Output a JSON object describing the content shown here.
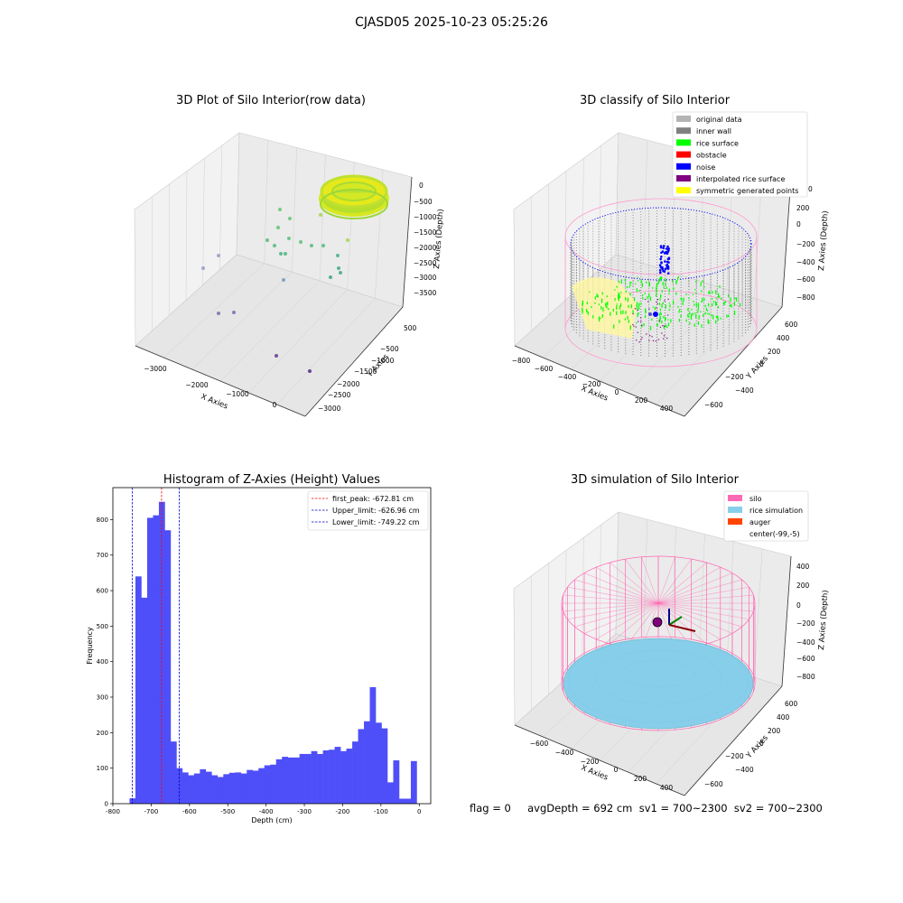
{
  "suptitle": "CJASD05 2025-10-23 05:25:26",
  "footer": "flag = 0     avgDepth = 692 cm  sv1 = 700~2300  sv2 = 700~2300",
  "colors": {
    "hist_bar": "#4f4ff9",
    "first_peak": "#ff0000",
    "limits": "#0000cc",
    "silo": "#ff69b4",
    "rice_simulation": "#87ceeb",
    "auger": "#ff4500",
    "original_data": "#b4b4b4",
    "inner_wall": "#808080",
    "rice_surface": "#00ff00",
    "obstacle": "#ff0000",
    "noise": "#0000ff",
    "interpolated": "#800080",
    "symmetric": "#ffff00",
    "pane": "#f2f2f2"
  },
  "chart_data": [
    {
      "type": "scatter",
      "title": "3D Plot of Silo Interior(row data)",
      "xlabel": "X Axies",
      "ylabel": "Y Axies",
      "zlabel": "Z Axies (Depth)",
      "x_ticks": [
        "−3000",
        "−2000",
        "−1000",
        "0"
      ],
      "y_ticks": [
        "500",
        "0",
        "−500",
        "−1000",
        "−1500",
        "−2000",
        "−2500",
        "−3000"
      ],
      "z_ticks": [
        "0",
        "−500",
        "−1000",
        "−1500",
        "−2000",
        "−2500",
        "−3000",
        "−3500"
      ]
    },
    {
      "type": "scatter",
      "title": "3D classify of Silo Interior",
      "xlabel": "X Axies",
      "ylabel": "Y Axies",
      "zlabel": "Z Axies (Depth)",
      "x_ticks": [
        "−800",
        "−600",
        "−400",
        "−200",
        "0",
        "200",
        "400"
      ],
      "y_ticks": [
        "600",
        "400",
        "200",
        "0",
        "−200",
        "−400",
        "−600"
      ],
      "z_ticks": [
        "200",
        "0",
        "−200",
        "−400",
        "−600",
        "−800"
      ],
      "z_top_partial_tick": "0",
      "legend": [
        {
          "label": "original data",
          "color": "#b4b4b4"
        },
        {
          "label": "inner wall",
          "color": "#808080"
        },
        {
          "label": "rice surface",
          "color": "#00ff00"
        },
        {
          "label": "obstacle",
          "color": "#ff0000"
        },
        {
          "label": "noise",
          "color": "#0000ff"
        },
        {
          "label": "interpolated rice surface",
          "color": "#800080"
        },
        {
          "label": "symmetric generated points",
          "color": "#ffff00"
        }
      ]
    },
    {
      "type": "bar",
      "title": "Histogram of Z-Axies (Height) Values",
      "xlabel": "Depth (cm)",
      "ylabel": "Frequency",
      "xlim": [
        -800,
        30
      ],
      "ylim": [
        0,
        890
      ],
      "x_ticks": [
        -800,
        -700,
        -600,
        -500,
        -400,
        -300,
        -200,
        -100,
        0
      ],
      "y_ticks": [
        0,
        100,
        200,
        300,
        400,
        500,
        600,
        700,
        800
      ],
      "bin_start": -787.0,
      "bin_width": 15.3,
      "values": [
        0,
        0,
        15,
        640,
        580,
        805,
        812,
        850,
        770,
        175,
        100,
        88,
        80,
        85,
        97,
        90,
        80,
        75,
        83,
        87,
        88,
        85,
        95,
        93,
        100,
        108,
        110,
        125,
        132,
        130,
        130,
        140,
        140,
        148,
        140,
        150,
        152,
        160,
        148,
        155,
        175,
        210,
        232,
        328,
        228,
        212,
        60,
        122,
        14,
        14,
        120
      ],
      "lines": [
        {
          "label": "first_peak: -672.81 cm",
          "x": -672.81,
          "color": "#ff0000"
        },
        {
          "label": "Upper_limit: -626.96 cm",
          "x": -626.96,
          "color": "#0000cc"
        },
        {
          "label": "Lower_limit: -749.22 cm",
          "x": -749.22,
          "color": "#0000cc"
        }
      ]
    },
    {
      "type": "scatter",
      "title": "3D simulation of Silo Interior",
      "xlabel": "X Axies",
      "ylabel": "Y Axies",
      "zlabel": "Z Axies (Depth)",
      "x_ticks": [
        "−600",
        "−400",
        "−200",
        "0",
        "200",
        "400"
      ],
      "y_ticks": [
        "600",
        "400",
        "200",
        "0",
        "−200",
        "−400",
        "−600"
      ],
      "z_ticks": [
        "400",
        "200",
        "0",
        "−200",
        "−400",
        "−600",
        "−800"
      ],
      "legend": [
        {
          "label": "silo",
          "color": "#ff69b4"
        },
        {
          "label": "rice simulation",
          "color": "#87ceeb"
        },
        {
          "label": "auger",
          "color": "#ff4500"
        },
        {
          "label": "center(-99,-5)",
          "color": "none"
        }
      ]
    }
  ]
}
